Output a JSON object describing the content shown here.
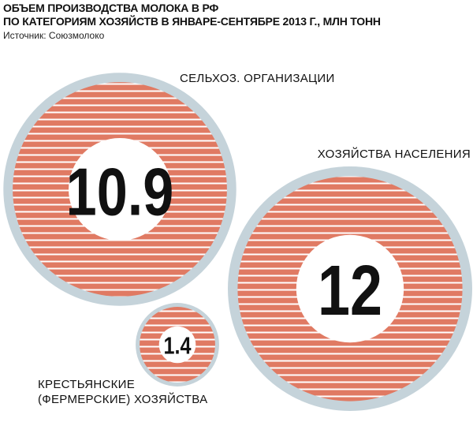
{
  "chart_data": {
    "type": "bubble",
    "title": "ОБЪЕМ ПРОИЗВОДСТВА МОЛОКА В РФ\nПО КАТЕГОРИЯМ ХОЗЯЙСТВ В ЯНВАРЕ-СЕНТЯБРЕ 2013 Г., МЛН ТОНН",
    "source": "Источник: Союзмолоко",
    "categories": [
      "СЕЛЬХОЗ. ОРГАНИЗАЦИИ",
      "ХОЗЯЙСТВА НАСЕЛЕНИЯ",
      "КРЕСТЬЯНСКИЕ\n(ФЕРМЕРСКИЕ) ХОЗЯЙСТВА"
    ],
    "values": [
      10.9,
      12,
      1.4
    ],
    "color": "#e07a63",
    "ring_color": "#c5d3da"
  }
}
